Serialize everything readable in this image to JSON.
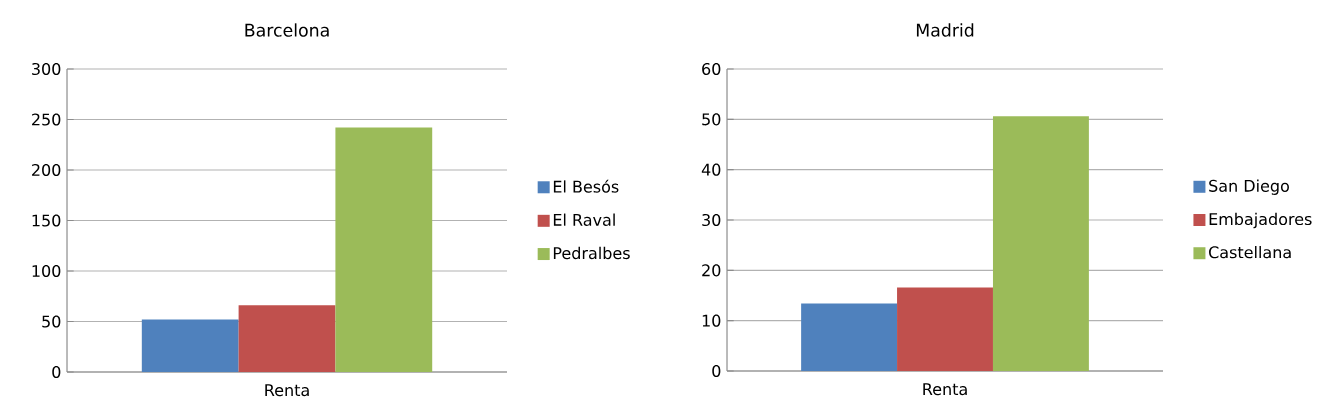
{
  "chart_data": [
    {
      "type": "bar",
      "title": "Barcelona",
      "categories": [
        "Renta"
      ],
      "series": [
        {
          "name": "El Besós",
          "color": "#4f81bd",
          "values": [
            52
          ]
        },
        {
          "name": "El Raval",
          "color": "#c0504d",
          "values": [
            66
          ]
        },
        {
          "name": "Pedralbes",
          "color": "#9bbb59",
          "values": [
            242
          ]
        }
      ],
      "ylim": [
        0,
        300
      ],
      "yticks": [
        0,
        50,
        100,
        150,
        200,
        250,
        300
      ],
      "grid": "y",
      "legend": "right"
    },
    {
      "type": "bar",
      "title": "Madrid",
      "categories": [
        "Renta"
      ],
      "series": [
        {
          "name": "San Diego",
          "color": "#4f81bd",
          "values": [
            13.4
          ]
        },
        {
          "name": "Embajadores",
          "color": "#c0504d",
          "values": [
            16.6
          ]
        },
        {
          "name": "Castellana",
          "color": "#9bbb59",
          "values": [
            50.6
          ]
        }
      ],
      "ylim": [
        0,
        60
      ],
      "yticks": [
        0,
        10,
        20,
        30,
        40,
        50,
        60
      ],
      "grid": "y",
      "legend": "right"
    }
  ]
}
